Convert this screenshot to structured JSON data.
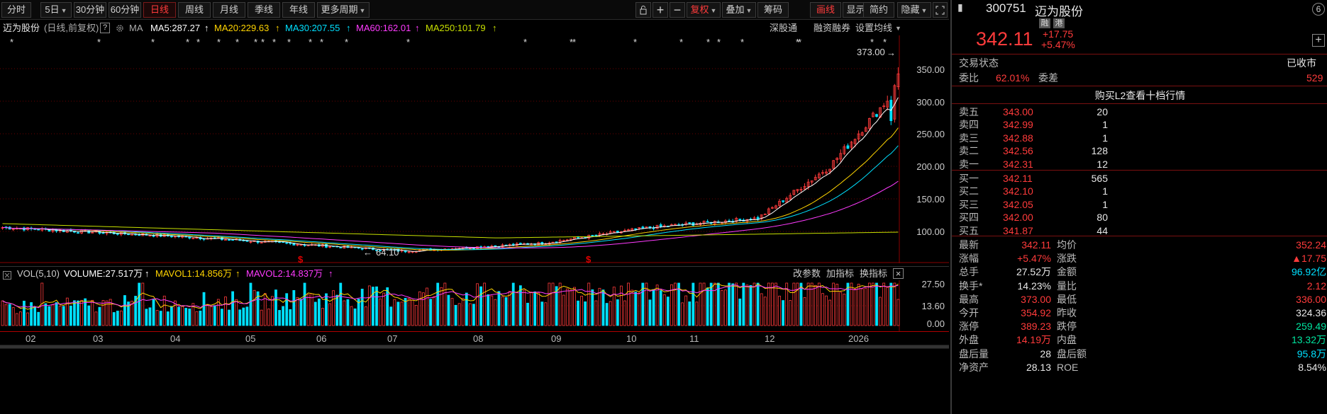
{
  "toolbar": {
    "periods": [
      "分时",
      "5日",
      "30分钟",
      "60分钟",
      "日线",
      "周线",
      "月线",
      "季线",
      "年线",
      "更多周期"
    ],
    "active_period": "日线",
    "tools": [
      "复权",
      "叠加",
      "筹码",
      "画线",
      "显示",
      "简约",
      "隐藏"
    ]
  },
  "info": {
    "name": "迈为股份",
    "mode": "(日线,前复权)",
    "help": "?",
    "ma_label": "MA",
    "ma5": "MA5:287.27",
    "ma20": "MA20:229.63",
    "ma30": "MA30:207.55",
    "ma60": "MA60:162.01",
    "ma250": "MA250:101.79",
    "arrow": "↑",
    "links": [
      "深股通",
      "融资融券",
      "设置均线"
    ]
  },
  "chart": {
    "y_ticks": [
      "350.00",
      "300.00",
      "250.00",
      "200.00",
      "150.00",
      "100.00"
    ],
    "high_label": "373.00",
    "low_label": "64.10",
    "marker_s": "$",
    "star": "*"
  },
  "volume": {
    "title": "VOL(5,10)",
    "volume": "VOLUME:27.517万",
    "mavol1": "MAVOL1:14.856万",
    "mavol2": "MAVOL2:14.837万",
    "arrow": "↑",
    "links": [
      "改参数",
      "加指标",
      "换指标"
    ],
    "close": "×",
    "y_ticks": [
      "27.50",
      "13.60",
      "0.00"
    ]
  },
  "xaxis": [
    "02",
    "03",
    "04",
    "05",
    "06",
    "07",
    "08",
    "09",
    "10",
    "11",
    "12",
    "2026"
  ],
  "colors": {
    "up": "#ff3b3b",
    "down": "#00e0ff",
    "ma5": "#ffffff",
    "ma20": "#ffd400",
    "ma30": "#00e0ff",
    "ma60": "#ff3bff",
    "ma250": "#ffd400"
  },
  "side": {
    "code": "300751",
    "name": "迈为股份",
    "badge_num": "6",
    "tags": [
      "融",
      "港"
    ],
    "price": "342.11",
    "change": "+17.75",
    "change_pct": "+5.47%",
    "plus": "+",
    "status_label": "交易状态",
    "status_value": "已收市",
    "weibi_label": "委比",
    "weibi_value": "62.01%",
    "weicha_label": "委差",
    "weicha_value": "529",
    "l2_link": "购买L2查看十档行情",
    "asks": [
      {
        "label": "卖五",
        "price": "343.00",
        "vol": "20"
      },
      {
        "label": "卖四",
        "price": "342.99",
        "vol": "1"
      },
      {
        "label": "卖三",
        "price": "342.88",
        "vol": "1"
      },
      {
        "label": "卖二",
        "price": "342.56",
        "vol": "128"
      },
      {
        "label": "卖一",
        "price": "342.31",
        "vol": "12"
      }
    ],
    "bids": [
      {
        "label": "买一",
        "price": "342.11",
        "vol": "565"
      },
      {
        "label": "买二",
        "price": "342.10",
        "vol": "1"
      },
      {
        "label": "买三",
        "price": "342.05",
        "vol": "1"
      },
      {
        "label": "买四",
        "price": "342.00",
        "vol": "80"
      },
      {
        "label": "买五",
        "price": "341.87",
        "vol": "44"
      }
    ],
    "stats": [
      {
        "l1": "最新",
        "v1": "342.11",
        "c1": "up",
        "l2": "均价",
        "v2": "352.24",
        "c2": "up"
      },
      {
        "l1": "涨幅",
        "v1": "+5.47%",
        "c1": "up",
        "l2": "涨跌",
        "v2": "▲17.75",
        "c2": "up"
      },
      {
        "l1": "总手",
        "v1": "27.52万",
        "c1": "wh",
        "l2": "金额",
        "v2": "96.92亿",
        "c2": "cy"
      },
      {
        "l1": "换手*",
        "v1": "14.23%",
        "c1": "wh",
        "l2": "量比",
        "v2": "2.12",
        "c2": "up"
      },
      {
        "l1": "最高",
        "v1": "373.00",
        "c1": "up",
        "l2": "最低",
        "v2": "336.00",
        "c2": "up"
      },
      {
        "l1": "今开",
        "v1": "354.92",
        "c1": "up",
        "l2": "昨收",
        "v2": "324.36",
        "c2": "wh"
      },
      {
        "l1": "涨停",
        "v1": "389.23",
        "c1": "up",
        "l2": "跌停",
        "v2": "259.49",
        "c2": "dn"
      },
      {
        "l1": "外盘",
        "v1": "14.19万",
        "c1": "up",
        "l2": "内盘",
        "v2": "13.32万",
        "c2": "dn"
      },
      {
        "l1": "盘后量",
        "v1": "28",
        "c1": "wh",
        "l2": "盘后额",
        "v2": "95.8万",
        "c2": "cy"
      },
      {
        "l1": "净资产",
        "v1": "28.13",
        "c1": "wh",
        "l2": "ROE",
        "v2": "8.54%",
        "c2": "wh"
      }
    ]
  }
}
